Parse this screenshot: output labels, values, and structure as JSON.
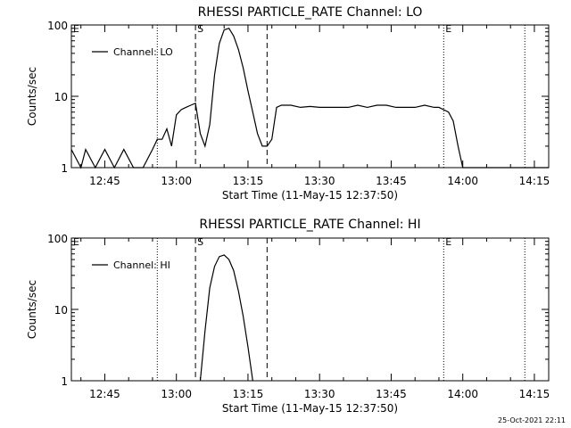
{
  "chart_data": [
    {
      "type": "line",
      "title": "RHESSI PARTICLE_RATE Channel: LO",
      "xlabel": "Start Time (11-May-15 12:37:50)",
      "ylabel": "Counts/sec",
      "y_scale": "log",
      "ylim": [
        1,
        100
      ],
      "xlim": [
        "12:38",
        "14:18"
      ],
      "x_ticks": [
        "12:45",
        "13:00",
        "13:15",
        "13:30",
        "13:45",
        "14:00",
        "14:15"
      ],
      "y_ticks": [
        "1",
        "10",
        "100"
      ],
      "legend": {
        "entry": "Channel: LO",
        "placement": "upper-left"
      },
      "grid": false,
      "markers": [
        {
          "label": "E",
          "time": "12:38",
          "style": "dotted"
        },
        {
          "label": "",
          "time": "12:56",
          "style": "dotted"
        },
        {
          "label": "S",
          "time": "13:04",
          "style": "dashed"
        },
        {
          "label": "",
          "time": "13:19",
          "style": "dashed"
        },
        {
          "label": "E",
          "time": "13:56",
          "style": "dotted"
        },
        {
          "label": "",
          "time": "14:13",
          "style": "dotted"
        }
      ],
      "series": [
        {
          "name": "Channel: LO",
          "x": [
            "12:38",
            "12:40",
            "12:41",
            "12:43",
            "12:45",
            "12:47",
            "12:49",
            "12:51",
            "12:53",
            "12:55",
            "12:56",
            "12:57",
            "12:58",
            "12:59",
            "13:00",
            "13:01",
            "13:02",
            "13:03",
            "13:04",
            "13:05",
            "13:06",
            "13:07",
            "13:08",
            "13:09",
            "13:10",
            "13:11",
            "13:12",
            "13:13",
            "13:14",
            "13:15",
            "13:16",
            "13:17",
            "13:18",
            "13:19",
            "13:20",
            "13:21",
            "13:22",
            "13:24",
            "13:26",
            "13:28",
            "13:30",
            "13:32",
            "13:34",
            "13:36",
            "13:38",
            "13:40",
            "13:42",
            "13:44",
            "13:46",
            "13:48",
            "13:50",
            "13:52",
            "13:54",
            "13:55",
            "13:56",
            "13:57",
            "13:58",
            "13:59",
            "14:00",
            "14:02",
            "14:04",
            "14:06",
            "14:08",
            "14:10",
            "14:12",
            "14:14",
            "14:16",
            "14:18"
          ],
          "y": [
            1.8,
            1,
            1.8,
            1,
            1.8,
            1,
            1.8,
            1,
            1,
            1.8,
            2.5,
            2.5,
            3.5,
            2,
            5.5,
            6.5,
            7,
            7.5,
            8,
            3,
            2,
            4,
            20,
            55,
            85,
            90,
            70,
            45,
            25,
            12,
            6,
            3,
            2,
            2,
            2.5,
            7,
            7.5,
            7.5,
            7,
            7.2,
            7,
            7,
            7,
            7,
            7.5,
            7,
            7.5,
            7.5,
            7,
            7,
            7,
            7.5,
            7,
            7,
            6.5,
            6,
            4.5,
            2,
            1,
            1,
            1,
            1,
            1,
            1,
            1,
            1,
            1,
            1
          ]
        }
      ]
    },
    {
      "type": "line",
      "title": "RHESSI PARTICLE_RATE Channel: HI",
      "xlabel": "Start Time (11-May-15 12:37:50)",
      "ylabel": "Counts/sec",
      "y_scale": "log",
      "ylim": [
        1,
        100
      ],
      "xlim": [
        "12:38",
        "14:18"
      ],
      "x_ticks": [
        "12:45",
        "13:00",
        "13:15",
        "13:30",
        "13:45",
        "14:00",
        "14:15"
      ],
      "y_ticks": [
        "1",
        "10",
        "100"
      ],
      "legend": {
        "entry": "Channel: HI",
        "placement": "upper-left"
      },
      "grid": false,
      "markers": [
        {
          "label": "E",
          "time": "12:38",
          "style": "dotted"
        },
        {
          "label": "",
          "time": "12:56",
          "style": "dotted"
        },
        {
          "label": "S",
          "time": "13:04",
          "style": "dashed"
        },
        {
          "label": "",
          "time": "13:19",
          "style": "dashed"
        },
        {
          "label": "E",
          "time": "13:56",
          "style": "dotted"
        },
        {
          "label": "",
          "time": "14:13",
          "style": "dotted"
        }
      ],
      "series": [
        {
          "name": "Channel: HI",
          "x": [
            "13:05",
            "13:06",
            "13:07",
            "13:08",
            "13:09",
            "13:10",
            "13:11",
            "13:12",
            "13:13",
            "13:14",
            "13:15",
            "13:16"
          ],
          "y": [
            1,
            5,
            20,
            40,
            55,
            58,
            50,
            35,
            18,
            8,
            3,
            1
          ]
        }
      ]
    }
  ],
  "footer": {
    "timestamp": "25-Oct-2021 22:11"
  }
}
